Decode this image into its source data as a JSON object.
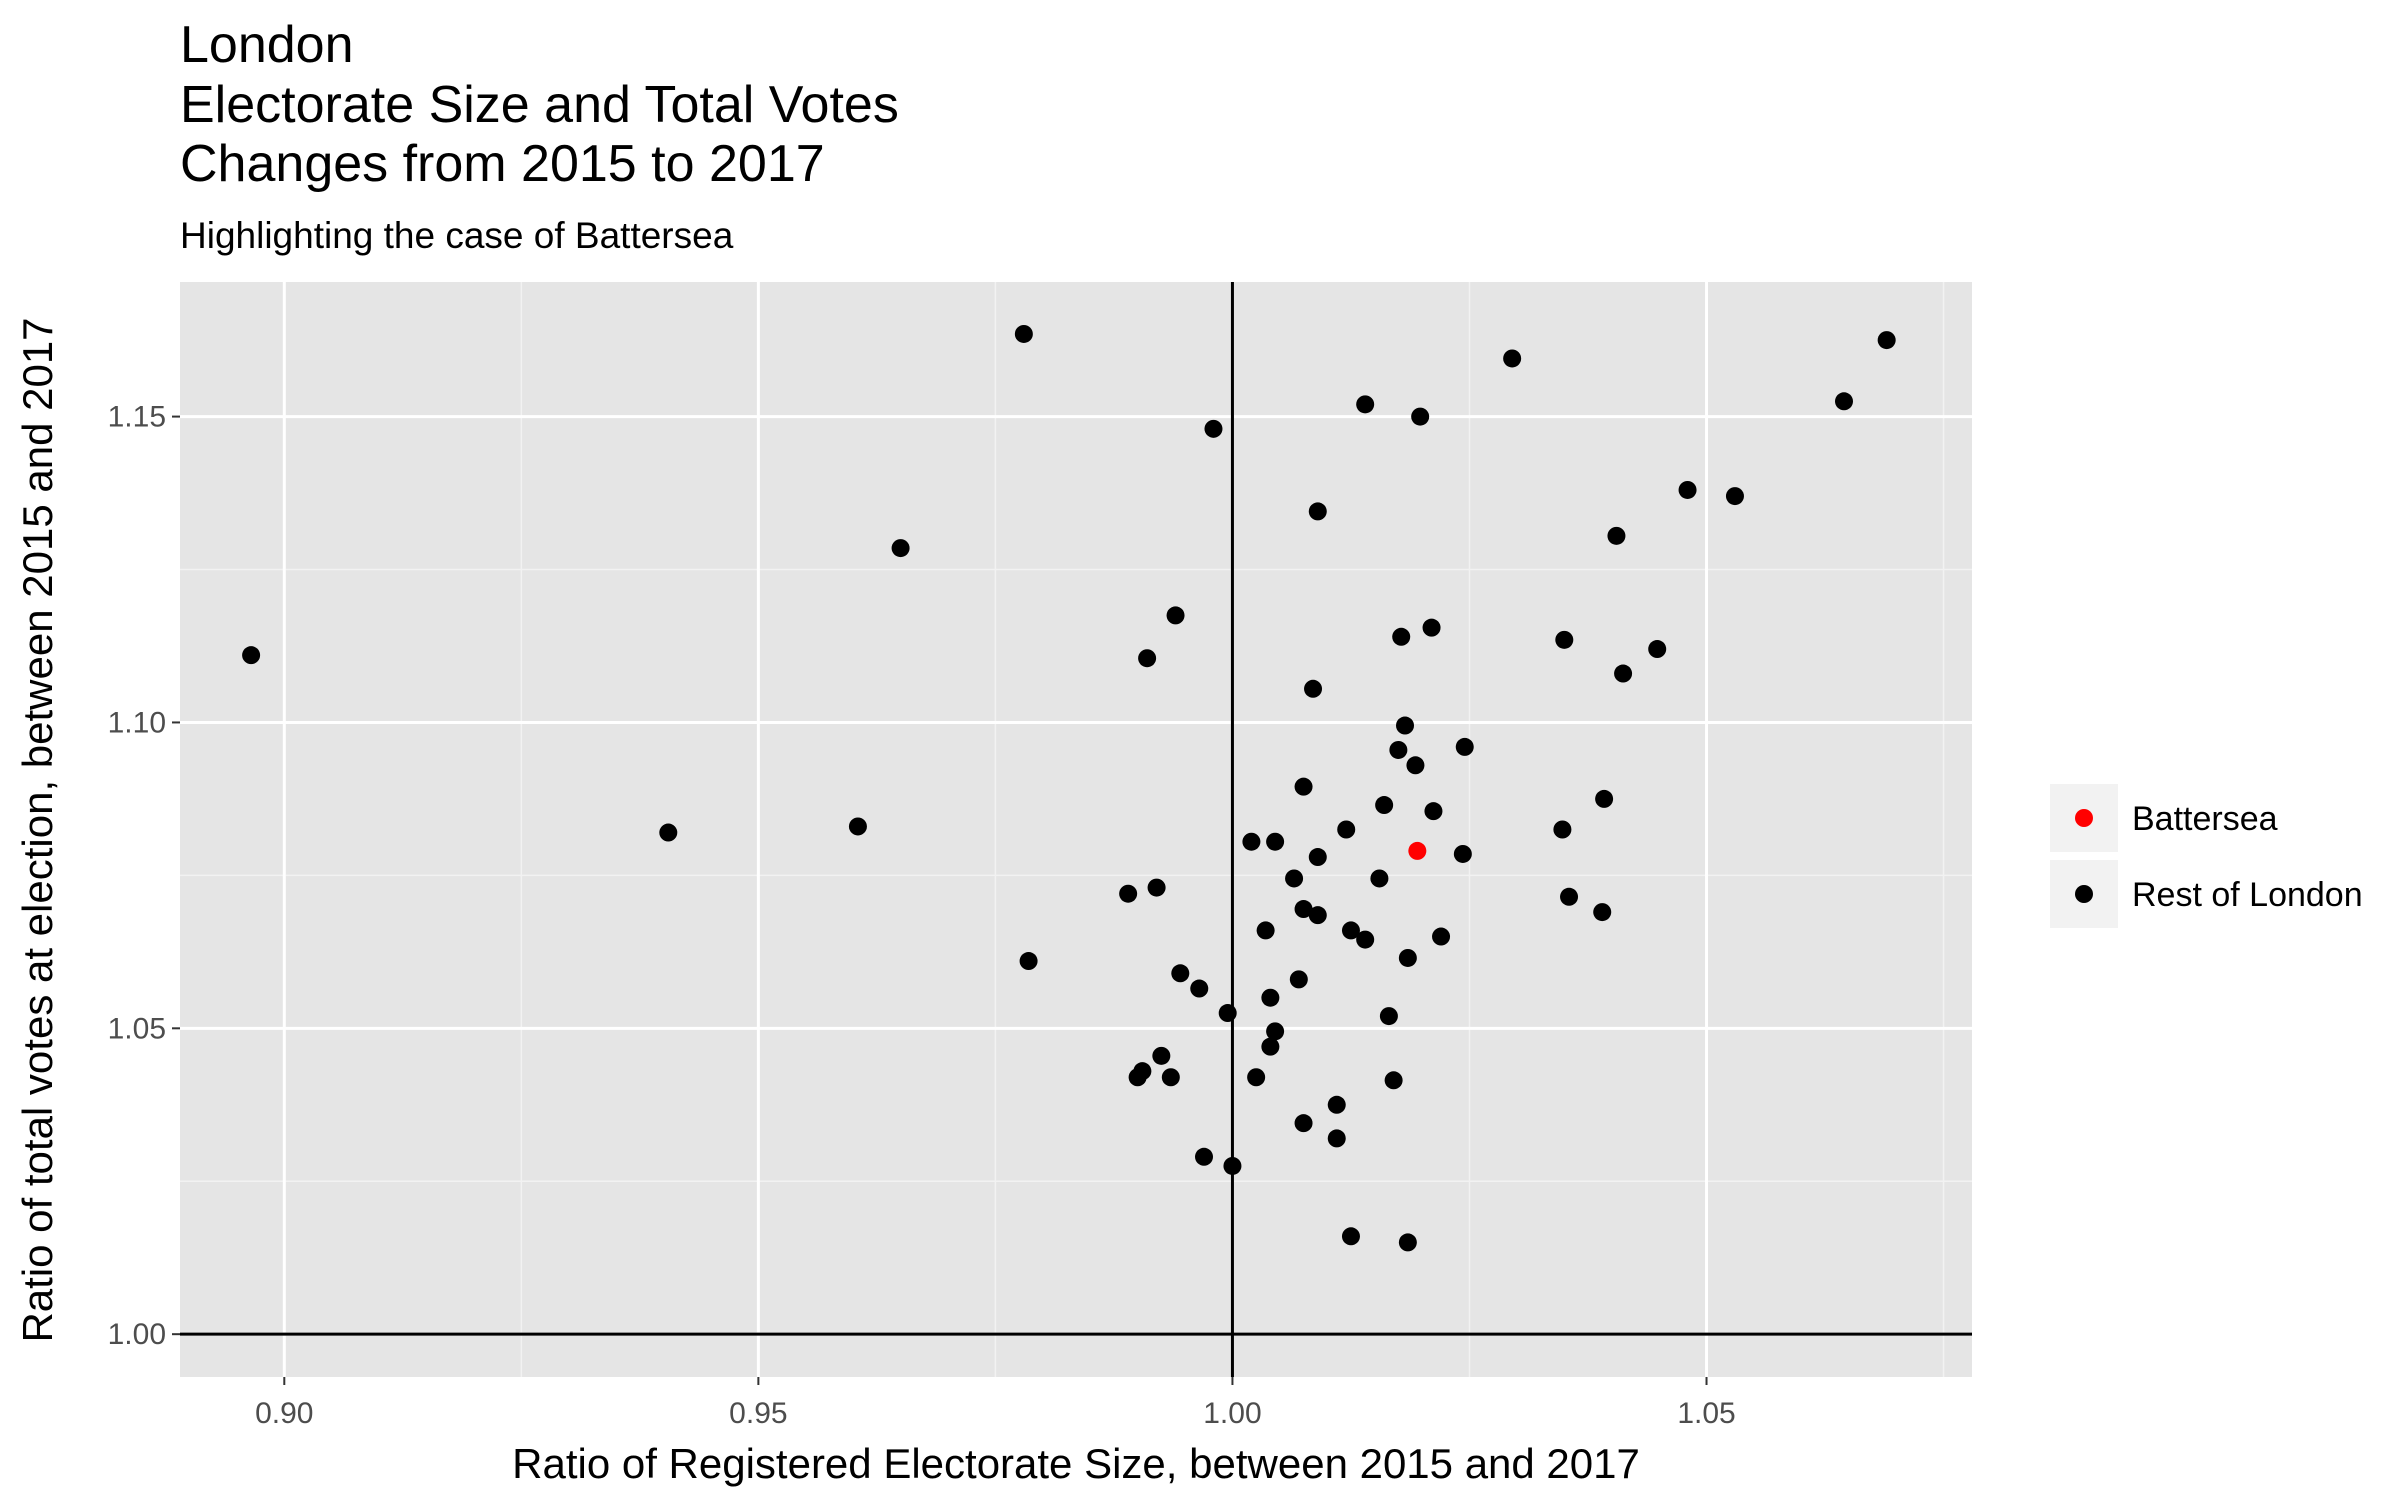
{
  "chart_data": {
    "type": "scatter",
    "title_lines": [
      "London",
      "Electorate Size and Total Votes",
      "Changes from 2015 to 2017"
    ],
    "subtitle": "Highlighting the case of Battersea",
    "xlabel": "Ratio of Registered Electorate Size, between 2015 and 2017",
    "ylabel": "Ratio of total votes at election, between 2015 and 2017",
    "xlim": [
      0.889,
      1.078
    ],
    "ylim": [
      0.993,
      1.172
    ],
    "x_ticks": [
      0.9,
      0.95,
      1.0,
      1.05
    ],
    "x_tick_labels": [
      "0.90",
      "0.95",
      "1.00",
      "1.05"
    ],
    "y_ticks": [
      1.0,
      1.05,
      1.1,
      1.15
    ],
    "y_tick_labels": [
      "1.00",
      "1.05",
      "1.10",
      "1.15"
    ],
    "reference_lines": {
      "x": 1.0,
      "y": 1.0
    },
    "grid": true,
    "legend_position": "right",
    "colors": {
      "panel_background": "#e5e5e5",
      "grid_major": "#ffffff",
      "grid_minor": "#f2f2f2",
      "reference_line": "#000000",
      "legend_key_background": "#f2f2f2"
    },
    "series": [
      {
        "name": "Battersea",
        "color": "#ff0000",
        "points": [
          [
            1.0195,
            1.079
          ]
        ]
      },
      {
        "name": "Rest of London",
        "color": "#000000",
        "points": [
          [
            0.8965,
            1.111
          ],
          [
            0.9405,
            1.082
          ],
          [
            0.9605,
            1.083
          ],
          [
            0.965,
            1.1285
          ],
          [
            0.978,
            1.1635
          ],
          [
            0.9785,
            1.061
          ],
          [
            0.989,
            1.072
          ],
          [
            0.99,
            1.042
          ],
          [
            0.9905,
            1.043
          ],
          [
            0.991,
            1.1105
          ],
          [
            0.992,
            1.073
          ],
          [
            0.9925,
            1.0455
          ],
          [
            0.9935,
            1.042
          ],
          [
            0.994,
            1.1175
          ],
          [
            0.9945,
            1.059
          ],
          [
            0.9965,
            1.0565
          ],
          [
            0.997,
            1.029
          ],
          [
            0.998,
            1.148
          ],
          [
            0.9995,
            1.0525
          ],
          [
            1.0,
            1.0275
          ],
          [
            1.002,
            1.0805
          ],
          [
            1.0025,
            1.042
          ],
          [
            1.0035,
            1.066
          ],
          [
            1.004,
            1.047
          ],
          [
            1.004,
            1.055
          ],
          [
            1.0045,
            1.0495
          ],
          [
            1.0045,
            1.0805
          ],
          [
            1.0065,
            1.0745
          ],
          [
            1.007,
            1.058
          ],
          [
            1.0075,
            1.0695
          ],
          [
            1.0075,
            1.0345
          ],
          [
            1.0075,
            1.0895
          ],
          [
            1.0085,
            1.1055
          ],
          [
            1.009,
            1.1345
          ],
          [
            1.009,
            1.078
          ],
          [
            1.009,
            1.0685
          ],
          [
            1.011,
            1.0375
          ],
          [
            1.011,
            1.032
          ],
          [
            1.012,
            1.0825
          ],
          [
            1.0125,
            1.066
          ],
          [
            1.0125,
            1.016
          ],
          [
            1.014,
            1.152
          ],
          [
            1.014,
            1.0645
          ],
          [
            1.0155,
            1.0745
          ],
          [
            1.016,
            1.0865
          ],
          [
            1.0165,
            1.052
          ],
          [
            1.017,
            1.0415
          ],
          [
            1.0175,
            1.0955
          ],
          [
            1.0178,
            1.114
          ],
          [
            1.0182,
            1.0995
          ],
          [
            1.0185,
            1.0615
          ],
          [
            1.0185,
            1.015
          ],
          [
            1.0193,
            1.093
          ],
          [
            1.0198,
            1.15
          ],
          [
            1.021,
            1.1155
          ],
          [
            1.0212,
            1.0855
          ],
          [
            1.022,
            1.065
          ],
          [
            1.0243,
            1.0785
          ],
          [
            1.0245,
            1.096
          ],
          [
            1.0295,
            1.1595
          ],
          [
            1.0348,
            1.0825
          ],
          [
            1.035,
            1.1135
          ],
          [
            1.0355,
            1.0715
          ],
          [
            1.039,
            1.069
          ],
          [
            1.0392,
            1.0875
          ],
          [
            1.0405,
            1.1305
          ],
          [
            1.0412,
            1.108
          ],
          [
            1.0448,
            1.112
          ],
          [
            1.048,
            1.138
          ],
          [
            1.053,
            1.137
          ],
          [
            1.0645,
            1.1525
          ],
          [
            1.069,
            1.1625
          ]
        ]
      }
    ]
  }
}
